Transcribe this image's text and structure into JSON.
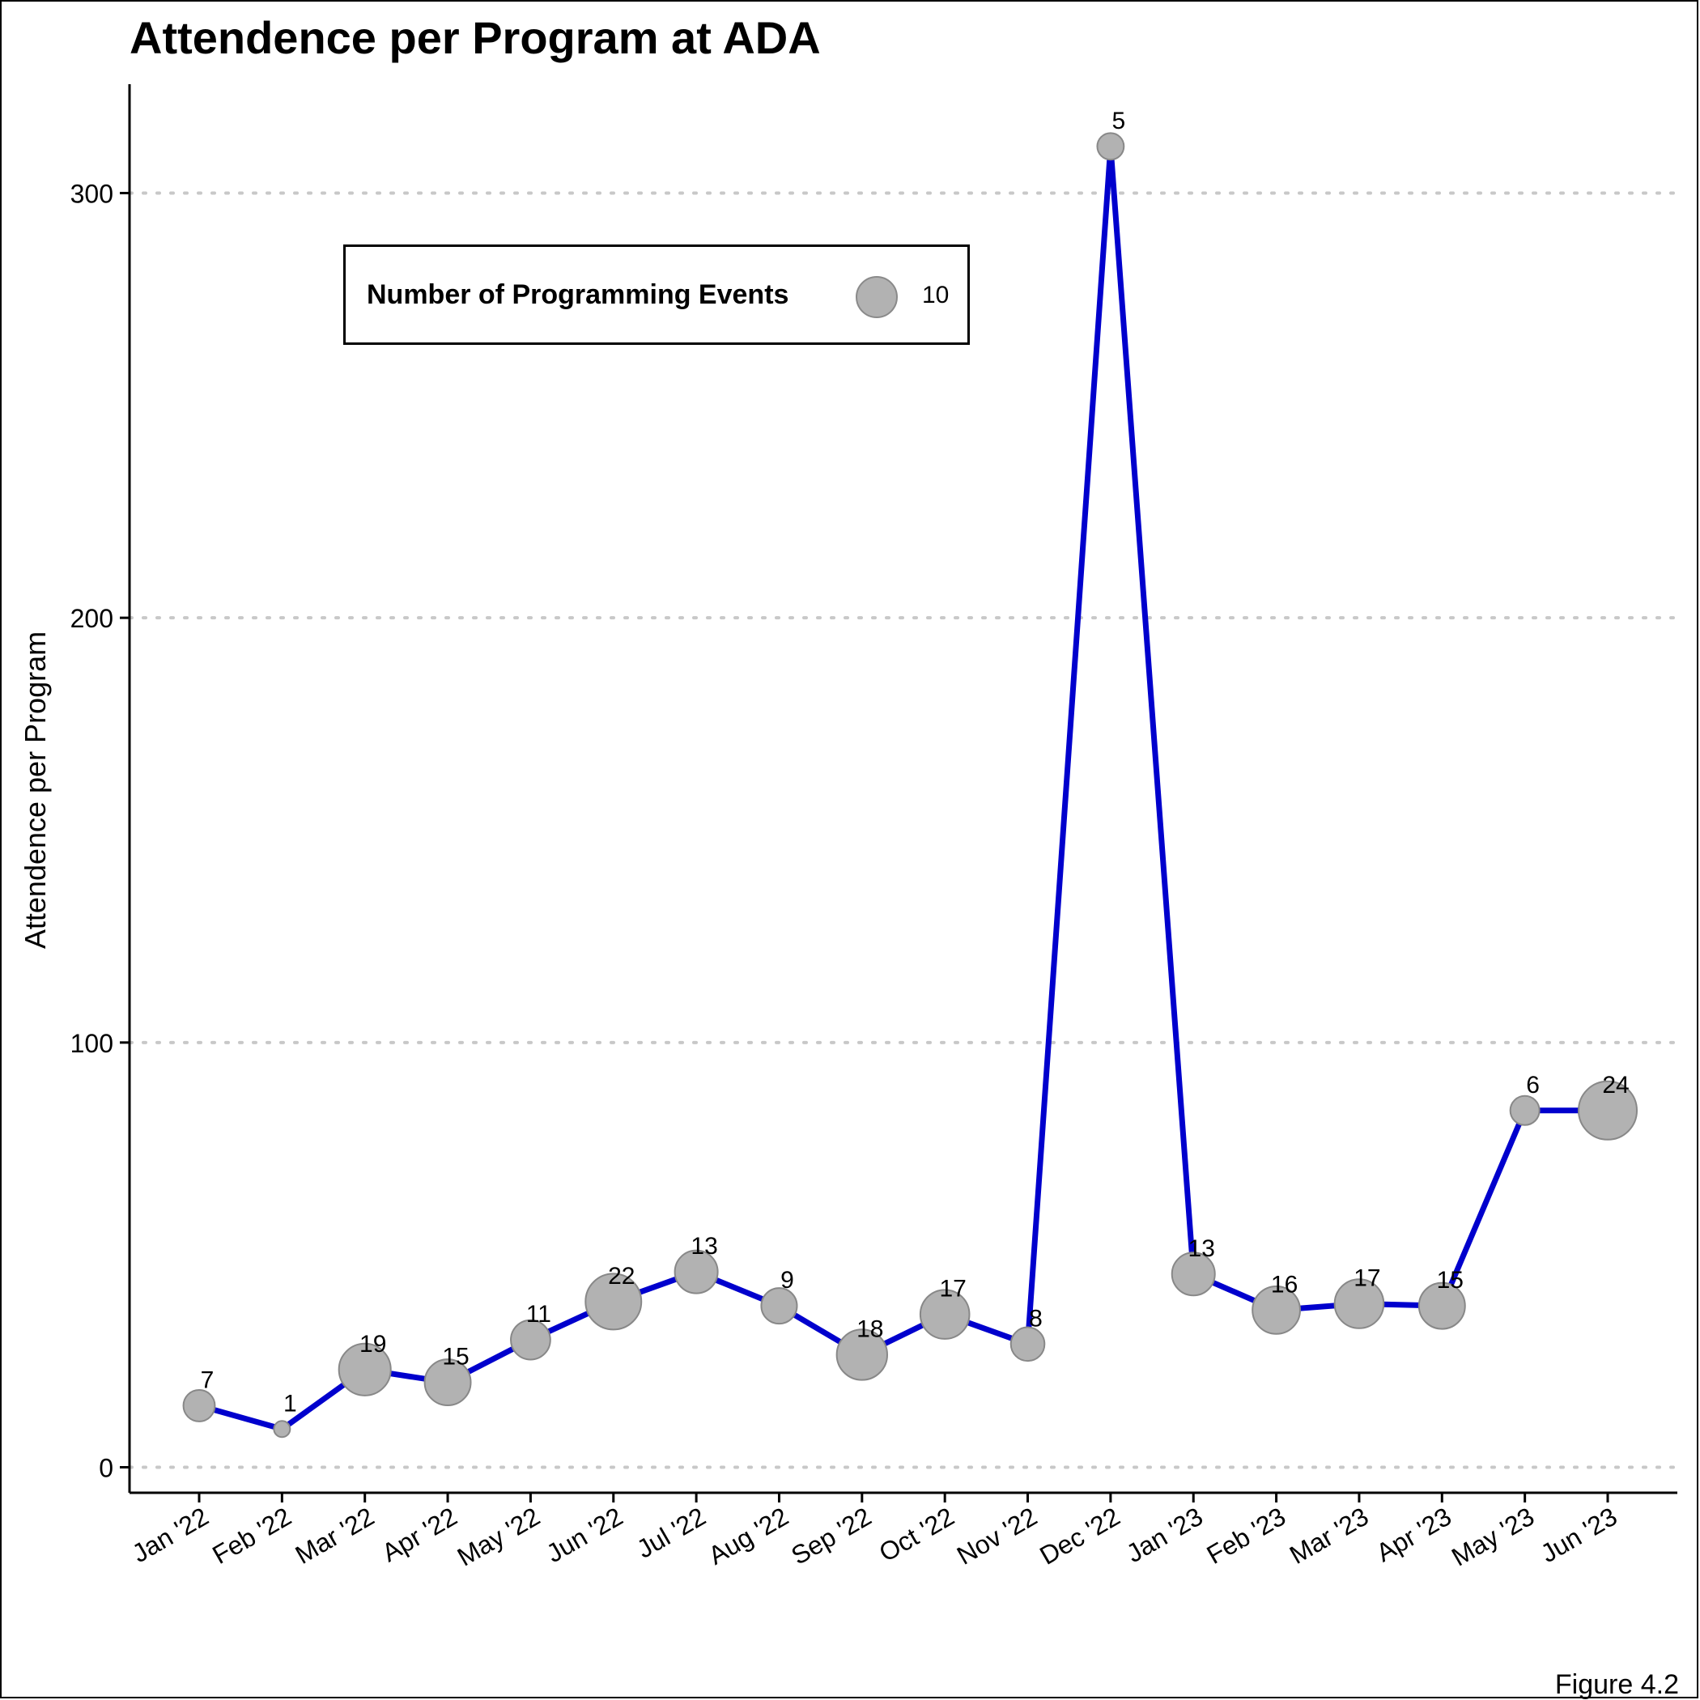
{
  "chart_data": {
    "type": "line",
    "title": "Attendence per Program at ADA",
    "ylabel": "Attendence per Program",
    "xlabel": "",
    "caption": "Figure 4.2",
    "ylim": [
      -6,
      326
    ],
    "yticks": [
      0,
      100,
      200,
      300
    ],
    "grid": "horizontal-dotted",
    "line_color": "#0000CD",
    "point_color": "#B2B2B2",
    "legend": {
      "title": "Number of Programming Events",
      "key_value": "10",
      "placement": "top-left"
    },
    "categories": [
      "Jan '22",
      "Feb '22",
      "Mar '22",
      "Apr '22",
      "May '22",
      "Jun '22",
      "Jul '22",
      "Aug '22",
      "Sep '22",
      "Oct '22",
      "Nov '22",
      "Dec '22",
      "Jan '23",
      "Feb '23",
      "Mar '23",
      "Apr '23",
      "May '23",
      "Jun '23"
    ],
    "x_dates": [
      "2022-01",
      "2022-02",
      "2022-03",
      "2022-04",
      "2022-05",
      "2022-06",
      "2022-07",
      "2022-08",
      "2022-09",
      "2022-10",
      "2022-11",
      "2022-12",
      "2023-01",
      "2023-02",
      "2023-03",
      "2023-04",
      "2023-05",
      "2023-06"
    ],
    "series": [
      {
        "values": [
          14.5,
          9,
          23,
          20,
          30,
          39,
          46,
          38,
          26.5,
          36,
          29,
          311,
          45.5,
          37,
          38.5,
          38,
          84,
          84
        ],
        "events": [
          7,
          1,
          19,
          15,
          11,
          22,
          13,
          9,
          18,
          17,
          8,
          5,
          13,
          16,
          17,
          15,
          6,
          24
        ]
      }
    ]
  }
}
